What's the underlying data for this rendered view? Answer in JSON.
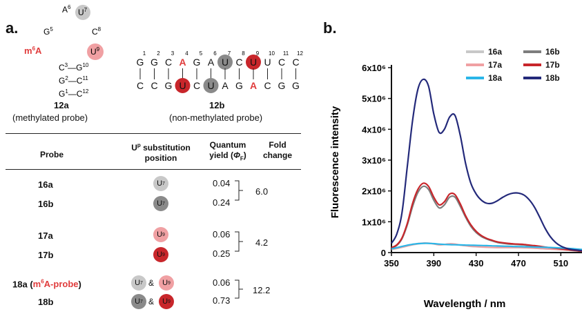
{
  "panel_a": {
    "label": "a.",
    "hairpin": {
      "name": "12a",
      "caption": "(methylated probe)",
      "m6a_label": "m6A",
      "loop": [
        "A6",
        "U7",
        "G5",
        "C8",
        "U9"
      ],
      "stem": [
        "C3-G10",
        "G2-C11",
        "G1-C12"
      ]
    },
    "duplex": {
      "name": "12b",
      "caption": "(non-methylated probe)",
      "top_strand": [
        "G",
        "G",
        "C",
        "A",
        "G",
        "A",
        "U",
        "C",
        "U",
        "U",
        "C",
        "C"
      ],
      "top_numbers": [
        "1",
        "2",
        "3",
        "4",
        "5",
        "6",
        "7",
        "8",
        "9",
        "10",
        "11",
        "12"
      ],
      "bottom_strand": [
        "C",
        "C",
        "G",
        "U",
        "C",
        "U",
        "A",
        "G",
        "A",
        "C",
        "G",
        "G"
      ]
    },
    "table": {
      "headers": {
        "probe": "Probe",
        "position": "Uᵖ substitution position",
        "qy": "Quantum yield (ΦF)",
        "fold": "Fold change"
      },
      "rows": [
        {
          "probe": "16a",
          "qy": "0.04",
          "position": "U7"
        },
        {
          "probe": "16b",
          "qy": "0.24",
          "position": "U7"
        },
        {
          "probe": "17a",
          "qy": "0.06",
          "position": "U9"
        },
        {
          "probe": "17b",
          "qy": "0.25",
          "position": "U9"
        },
        {
          "probe": "18a",
          "probe_note": "m6A-probe",
          "qy": "0.06",
          "position": "U7 & U9"
        },
        {
          "probe": "18b",
          "qy": "0.73",
          "position": "U7 & U9"
        }
      ],
      "fold_changes": [
        "6.0",
        "4.2",
        "12.2"
      ]
    },
    "colors": {
      "light_gray": "#c8c8c8",
      "dark_gray": "#8a8a8a",
      "pink": "#f0a0a3",
      "red": "#c8262b",
      "m6a_red": "#e03c3c"
    }
  },
  "panel_b": {
    "label": "b."
  },
  "chart_data": {
    "type": "line",
    "xlabel": "Wavelength / nm",
    "ylabel": "Fluorescence intensity",
    "xlim": [
      350,
      530
    ],
    "ylim": [
      0,
      6000000
    ],
    "x_ticks": [
      "350",
      "390",
      "430",
      "470",
      "510"
    ],
    "y_ticks": [
      "0",
      "1x10⁶",
      "2x10⁶",
      "3x10⁶",
      "4x10⁶",
      "5x10⁶",
      "6x10⁶"
    ],
    "legend_position": "top-right",
    "x": [
      350,
      355,
      360,
      365,
      370,
      375,
      380,
      385,
      390,
      395,
      400,
      405,
      410,
      415,
      420,
      425,
      430,
      435,
      440,
      445,
      450,
      455,
      460,
      465,
      470,
      475,
      480,
      485,
      490,
      495,
      500,
      505,
      510,
      515,
      520,
      525,
      530
    ],
    "series": [
      {
        "name": "16a",
        "color": "#c8c8c8",
        "values": [
          100000,
          130000,
          170000,
          210000,
          250000,
          280000,
          300000,
          300000,
          280000,
          250000,
          260000,
          280000,
          270000,
          240000,
          220000,
          200000,
          190000,
          180000,
          170000,
          165000,
          160000,
          160000,
          160000,
          160000,
          160000,
          155000,
          150000,
          140000,
          130000,
          120000,
          110000,
          100000,
          90000,
          80000,
          70000,
          60000,
          50000
        ]
      },
      {
        "name": "16b",
        "color": "#7d7d7d",
        "values": [
          150000,
          230000,
          450000,
          900000,
          1500000,
          1950000,
          2150000,
          2050000,
          1700000,
          1450000,
          1550000,
          1800000,
          1800000,
          1500000,
          1150000,
          850000,
          650000,
          520000,
          440000,
          380000,
          330000,
          300000,
          280000,
          270000,
          260000,
          250000,
          230000,
          210000,
          190000,
          170000,
          150000,
          130000,
          110000,
          90000,
          70000,
          55000,
          40000
        ]
      },
      {
        "name": "17a",
        "color": "#f0a0a3",
        "values": [
          110000,
          140000,
          180000,
          220000,
          260000,
          290000,
          310000,
          305000,
          285000,
          255000,
          265000,
          285000,
          275000,
          245000,
          225000,
          205000,
          195000,
          185000,
          175000,
          170000,
          165000,
          165000,
          165000,
          165000,
          165000,
          160000,
          155000,
          145000,
          135000,
          125000,
          115000,
          105000,
          95000,
          85000,
          75000,
          65000,
          55000
        ]
      },
      {
        "name": "17b",
        "color": "#c8262b",
        "values": [
          160000,
          250000,
          480000,
          950000,
          1600000,
          2050000,
          2250000,
          2150000,
          1800000,
          1550000,
          1650000,
          1900000,
          1880000,
          1580000,
          1200000,
          900000,
          690000,
          550000,
          460000,
          400000,
          350000,
          320000,
          300000,
          285000,
          275000,
          265000,
          245000,
          225000,
          205000,
          180000,
          160000,
          140000,
          120000,
          100000,
          80000,
          60000,
          45000
        ]
      },
      {
        "name": "18a",
        "color": "#2ab6e8",
        "values": [
          120000,
          160000,
          200000,
          240000,
          270000,
          290000,
          300000,
          300000,
          290000,
          275000,
          265000,
          258000,
          252000,
          248000,
          245000,
          240000,
          235000,
          230000,
          225000,
          220000,
          215000,
          210000,
          205000,
          200000,
          195000,
          190000,
          185000,
          180000,
          175000,
          170000,
          165000,
          160000,
          150000,
          140000,
          130000,
          115000,
          100000
        ]
      },
      {
        "name": "18b",
        "color": "#23297a",
        "values": [
          300000,
          600000,
          1300000,
          2800000,
          4300000,
          5300000,
          5620000,
          5400000,
          4500000,
          3900000,
          4000000,
          4400000,
          4450000,
          3800000,
          2900000,
          2250000,
          1900000,
          1700000,
          1600000,
          1600000,
          1680000,
          1790000,
          1880000,
          1930000,
          1930000,
          1870000,
          1720000,
          1480000,
          1150000,
          800000,
          520000,
          330000,
          210000,
          140000,
          100000,
          80000,
          60000
        ]
      }
    ]
  }
}
